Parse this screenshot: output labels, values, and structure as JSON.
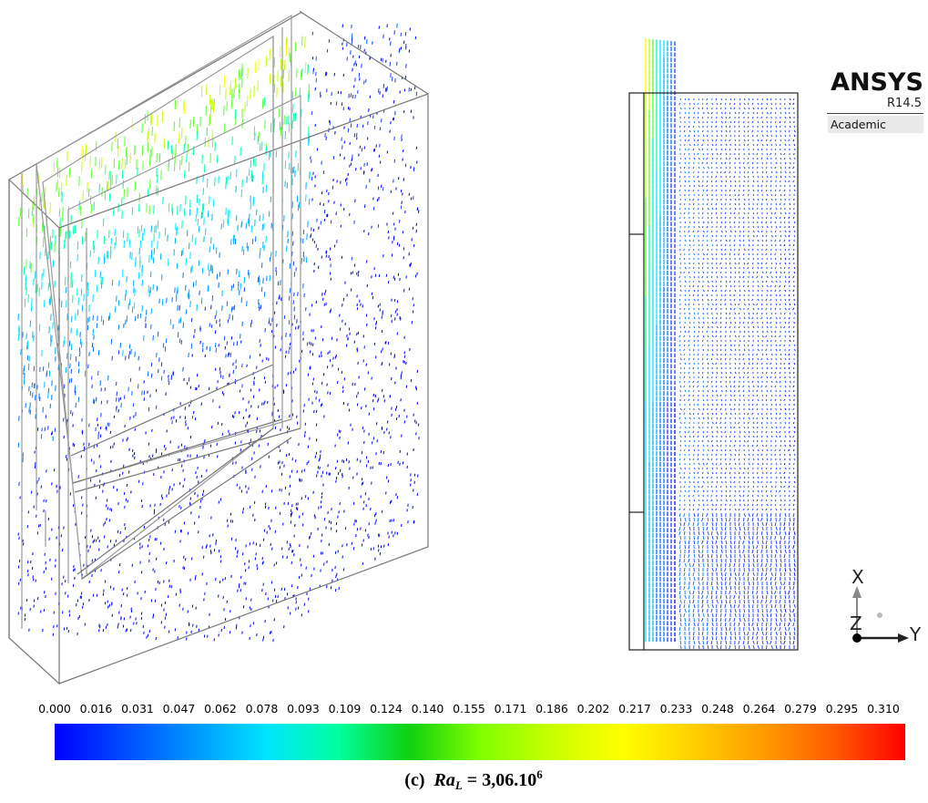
{
  "brand": {
    "name": "ANSYS",
    "version": "R14.5",
    "edition": "Academic"
  },
  "colorbar": {
    "ticks": [
      "0.000",
      "0.016",
      "0.031",
      "0.047",
      "0.062",
      "0.078",
      "0.093",
      "0.109",
      "0.124",
      "0.140",
      "0.155",
      "0.171",
      "0.186",
      "0.202",
      "0.217",
      "0.233",
      "0.248",
      "0.264",
      "0.279",
      "0.295",
      "0.310"
    ],
    "colors": [
      "#0000ff",
      "#004cff",
      "#0099ff",
      "#00e5ff",
      "#00ff9f",
      "#10d010",
      "#80ff00",
      "#c8ff00",
      "#ffff00",
      "#ffd000",
      "#ff9c00",
      "#ff5a00",
      "#ff0000"
    ]
  },
  "axes": {
    "x_label": "X",
    "y_label": "Y",
    "z_label": "Z"
  },
  "caption": {
    "prefix": "(c)",
    "symbol": "Ra",
    "subscript": "L",
    "equals": "= 3,06.10",
    "exponent": "6"
  }
}
